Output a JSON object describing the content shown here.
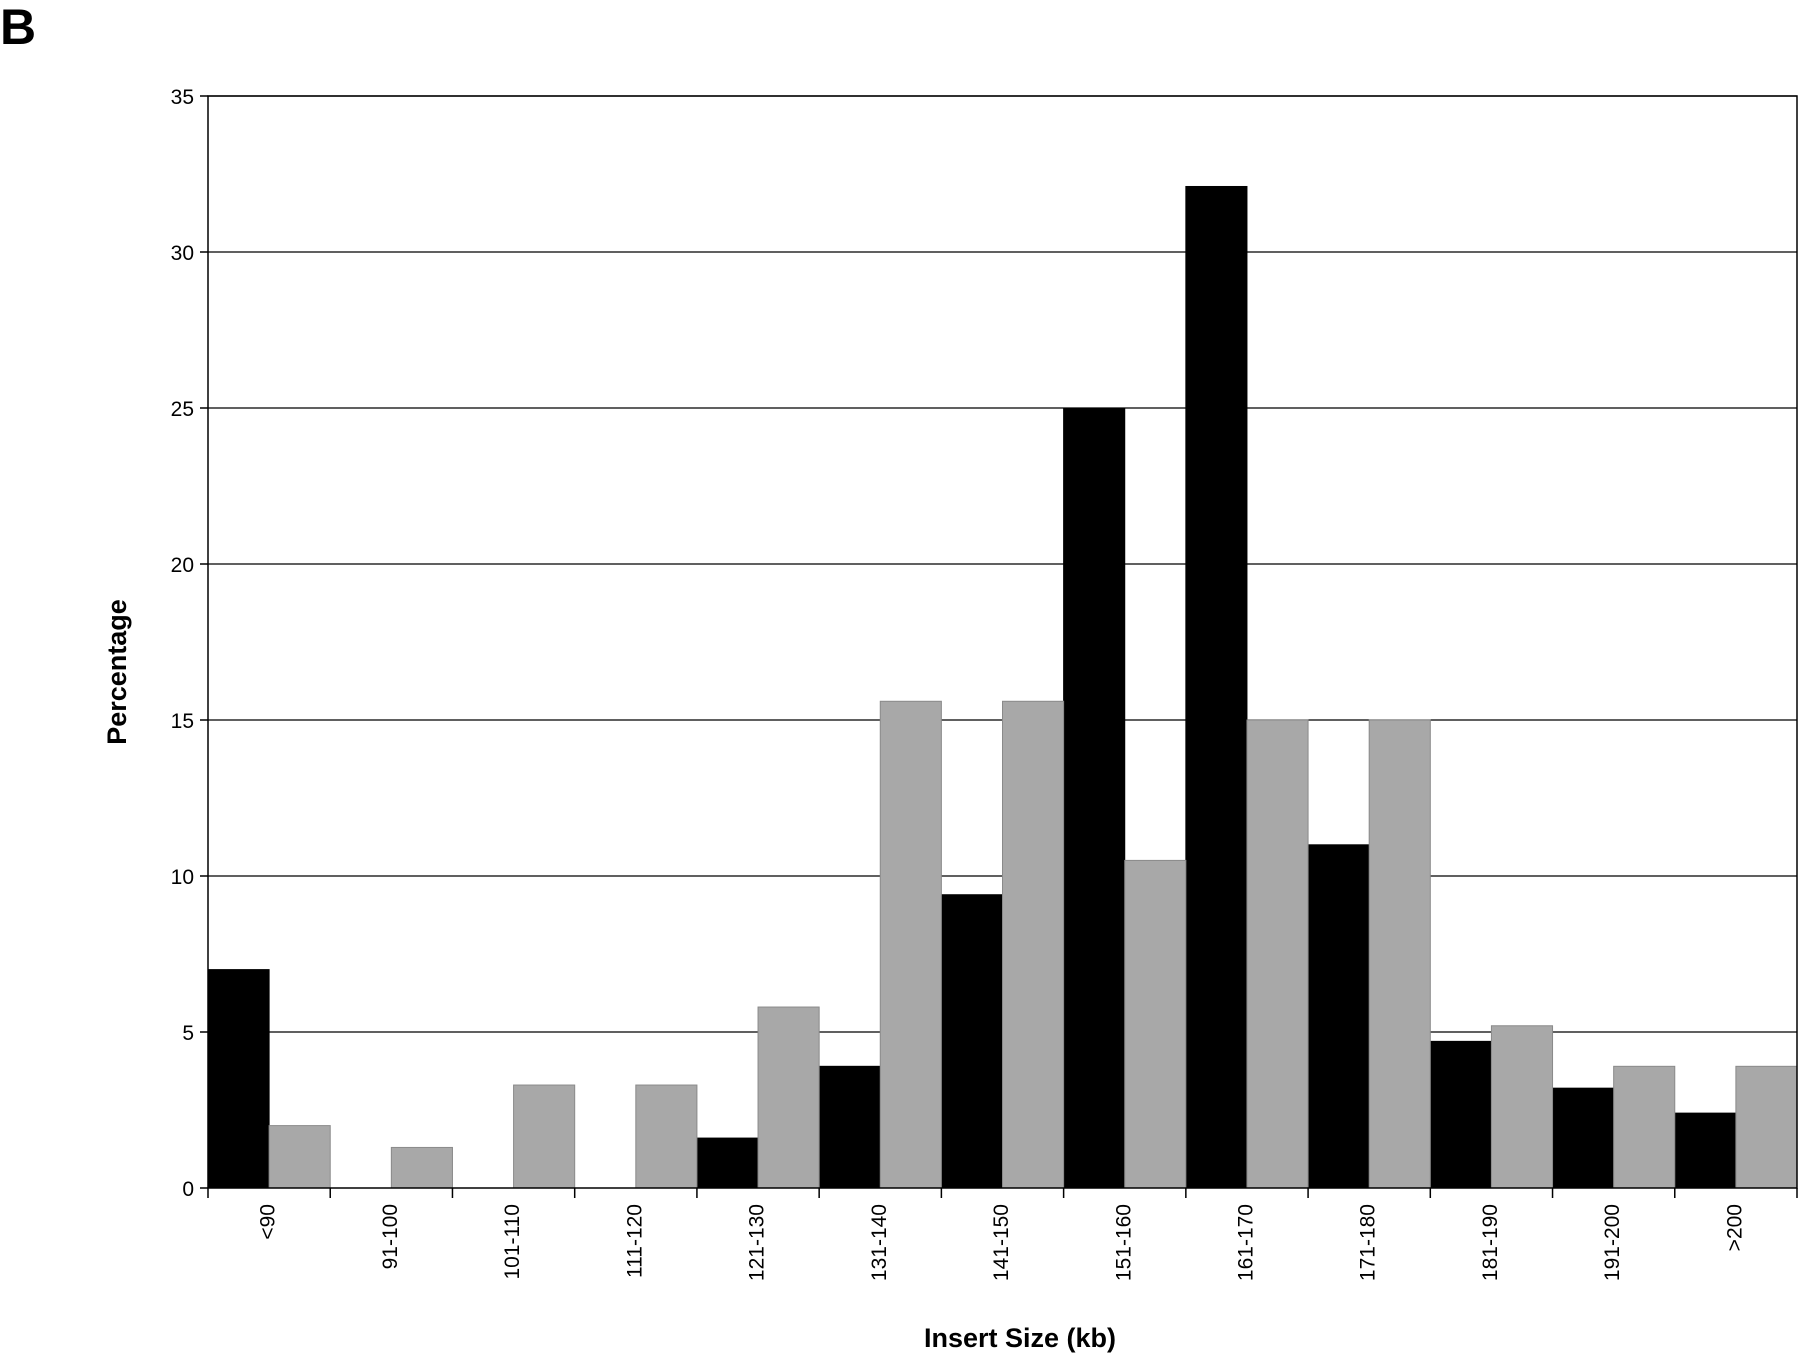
{
  "panel_label": "B",
  "chart_data": {
    "type": "bar",
    "title": "",
    "xlabel": "Insert Size (kb)",
    "ylabel": "Percentage",
    "ylim": [
      0,
      35
    ],
    "yticks": [
      0,
      5,
      10,
      15,
      20,
      25,
      30,
      35
    ],
    "grid": true,
    "categories": [
      "<90",
      "91-100",
      "101-110",
      "111-120",
      "121-130",
      "131-140",
      "141-150",
      "151-160",
      "161-170",
      "171-180",
      "181-190",
      "191-200",
      ">200"
    ],
    "series": [
      {
        "color": "#000000",
        "values": [
          7.0,
          0,
          0,
          0,
          1.6,
          3.9,
          9.4,
          25.0,
          32.1,
          11.0,
          4.7,
          3.2,
          2.4
        ]
      },
      {
        "color": "#a8a8a8",
        "values": [
          2.0,
          1.3,
          3.3,
          3.3,
          5.8,
          15.6,
          15.6,
          10.5,
          15.0,
          15.0,
          5.2,
          3.9,
          3.9
        ]
      }
    ]
  }
}
